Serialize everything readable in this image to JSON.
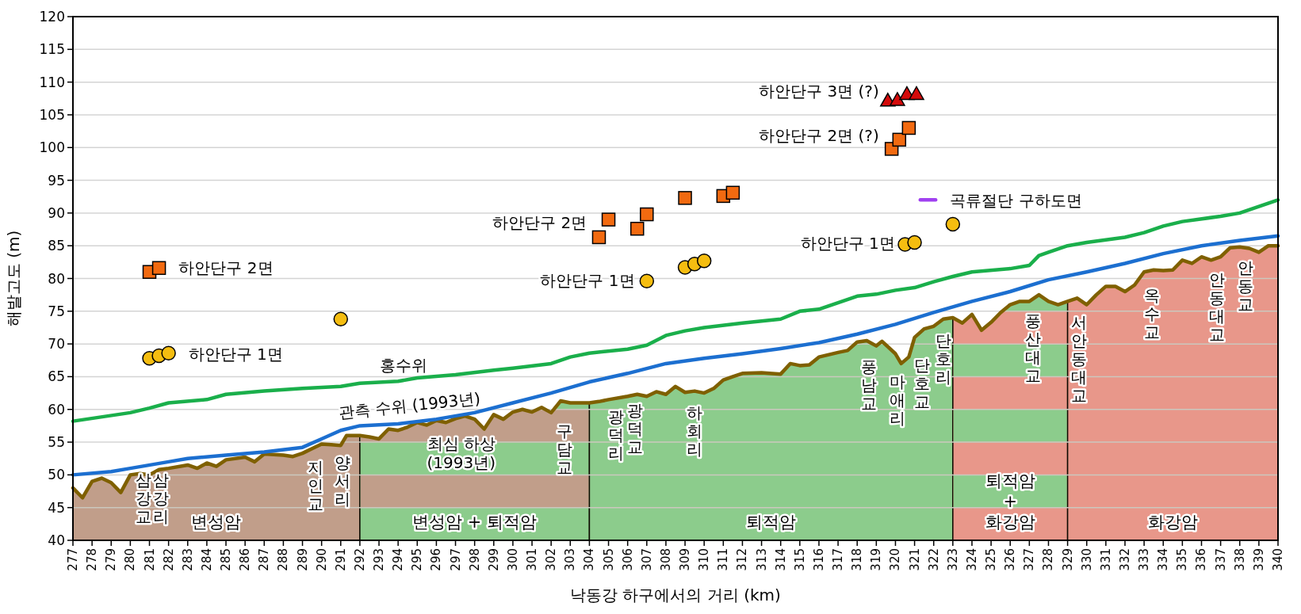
{
  "chart_data": {
    "type": "line",
    "xlabel": "낙동강 하구에서의 거리 (km)",
    "ylabel": "해발고도 (m)",
    "xlim": [
      277,
      340
    ],
    "ylim": [
      40,
      120
    ],
    "xticks": [
      277,
      278,
      279,
      280,
      281,
      282,
      283,
      284,
      285,
      286,
      287,
      288,
      289,
      290,
      291,
      292,
      293,
      294,
      295,
      296,
      297,
      298,
      299,
      300,
      301,
      302,
      303,
      304,
      305,
      306,
      307,
      308,
      309,
      310,
      311,
      312,
      313,
      314,
      315,
      316,
      317,
      318,
      319,
      320,
      321,
      322,
      323,
      324,
      325,
      326,
      327,
      328,
      329,
      330,
      331,
      332,
      333,
      334,
      335,
      336,
      337,
      338,
      339,
      340
    ],
    "yticks": [
      40,
      45,
      50,
      55,
      60,
      65,
      70,
      75,
      80,
      85,
      90,
      95,
      100,
      105,
      110,
      115,
      120
    ],
    "grid": "y",
    "bands": [
      {
        "axis": "x",
        "from": 277,
        "to": 292,
        "label": "변성암",
        "color": [
          "#c9a59a"
        ]
      },
      {
        "axis": "x",
        "from": 292,
        "to": 304,
        "label": "변성암 + 퇴적암",
        "color": [
          "#8ed99c",
          "#c9a59a"
        ]
      },
      {
        "axis": "x",
        "from": 304,
        "to": 323,
        "label": "퇴적암",
        "color": [
          "#8ed99c"
        ]
      },
      {
        "axis": "x",
        "from": 323,
        "to": 329,
        "label": "퇴적암\n+\n화강암",
        "color": [
          "#f49d9a",
          "#8ed99c"
        ]
      },
      {
        "axis": "x",
        "from": 329,
        "to": 340,
        "label": "화강암",
        "color": [
          "#f49d9a"
        ]
      }
    ],
    "series": [
      {
        "type": "area",
        "color": "#7f6000",
        "x": [
          277,
          277.5,
          278,
          278.5,
          279,
          279.5,
          280,
          280.5,
          281,
          281.5,
          282,
          283,
          283.5,
          284,
          284.5,
          285,
          286,
          286.5,
          287,
          288,
          288.5,
          289,
          289.5,
          290,
          290.5,
          291,
          291.3,
          292,
          292.5,
          293,
          293.5,
          294,
          294.5,
          295,
          295.5,
          296,
          296.5,
          297,
          297.5,
          298,
          298.5,
          299,
          299.5,
          300,
          300.5,
          301,
          301.5,
          302,
          302.5,
          303,
          304,
          304.5,
          305,
          306,
          306.5,
          307,
          307.5,
          308,
          308.5,
          309,
          309.5,
          310,
          310.5,
          311,
          311.5,
          312,
          313,
          314,
          314.5,
          315,
          315.5,
          316,
          317,
          317.5,
          318,
          318.5,
          319,
          319.3,
          320,
          320.3,
          320.7,
          321,
          321.5,
          322,
          322.5,
          323,
          323.5,
          324,
          324.5,
          325,
          325.5,
          326,
          326.5,
          327,
          327.5,
          328,
          328.5,
          329,
          329.5,
          330,
          330.5,
          331,
          331.5,
          332,
          332.5,
          333,
          333.5,
          334,
          334.5,
          335,
          335.5,
          336,
          336.5,
          337,
          337.5,
          338,
          338.5,
          339,
          339.5,
          340
        ],
        "values": [
          48,
          46.5,
          49,
          49.5,
          48.8,
          47.3,
          50,
          50.2,
          50,
          50.8,
          51,
          51.5,
          51,
          51.8,
          51.3,
          52.3,
          52.7,
          52,
          53.2,
          53,
          52.8,
          53.3,
          54,
          54.7,
          54.6,
          54.5,
          56,
          56,
          55.8,
          55.5,
          57,
          56.8,
          57.3,
          58,
          57.6,
          58.3,
          58,
          58.6,
          59,
          58.5,
          57,
          59.2,
          58.5,
          59.6,
          60,
          59.6,
          60.3,
          59.5,
          61.3,
          61,
          61,
          61.2,
          61.5,
          62,
          62.3,
          62,
          62.7,
          62.3,
          63.5,
          62.6,
          62.8,
          62.5,
          63.2,
          64.5,
          65,
          65.5,
          65.6,
          65.4,
          67,
          66.7,
          66.8,
          68,
          68.7,
          69,
          70.3,
          70.5,
          69.7,
          70.4,
          68.5,
          67,
          68,
          71,
          72.3,
          72.7,
          73.8,
          74,
          73.2,
          74.5,
          72.1,
          73.3,
          74.8,
          76,
          76.5,
          76.5,
          77.5,
          76.5,
          76,
          76.5,
          77,
          76,
          77.5,
          78.8,
          78.8,
          78,
          79,
          81,
          81.3,
          81.2,
          81.3,
          82.8,
          82.3,
          83.3,
          82.8,
          83.3,
          84.7,
          84.8,
          84.6,
          84,
          85,
          85
        ]
      },
      {
        "color": "#1aaf4b",
        "x": [
          277,
          280,
          281,
          282,
          284,
          285,
          287,
          289,
          291,
          292,
          294,
          295,
          297,
          299,
          300,
          302,
          303,
          304,
          306,
          307,
          308,
          309,
          310,
          312,
          314,
          315,
          316,
          317,
          318,
          319,
          320,
          321,
          322,
          323,
          324,
          326,
          327,
          327.5,
          328,
          329,
          330,
          332,
          333,
          334,
          335,
          337,
          338,
          339,
          340
        ],
        "values": [
          58.2,
          59.5,
          60.2,
          61,
          61.5,
          62.3,
          62.8,
          63.2,
          63.5,
          64,
          64.3,
          64.8,
          65.3,
          66,
          66.3,
          67,
          68,
          68.6,
          69.2,
          69.8,
          71.3,
          72,
          72.5,
          73.2,
          73.8,
          75,
          75.3,
          76.3,
          77.3,
          77.6,
          78.2,
          78.6,
          79.5,
          80.3,
          81,
          81.5,
          82,
          83.5,
          84,
          85,
          85.5,
          86.3,
          87,
          88,
          88.7,
          89.5,
          90,
          91,
          92
        ]
      },
      {
        "color": "#1c6fd0",
        "x": [
          277,
          279,
          280,
          282,
          283,
          285,
          287,
          289,
          290,
          291,
          292,
          294,
          296,
          298,
          300,
          302,
          304,
          306,
          308,
          310,
          312,
          314,
          316,
          318,
          320,
          322,
          324,
          326,
          328,
          330,
          332,
          334,
          336,
          338,
          340
        ],
        "values": [
          50,
          50.5,
          51,
          52,
          52.5,
          53,
          53.5,
          54.2,
          55.5,
          56.8,
          57.5,
          57.8,
          58.5,
          59.5,
          61,
          62.5,
          64.2,
          65.5,
          67,
          67.8,
          68.5,
          69.3,
          70.2,
          71.5,
          73,
          74.8,
          76.5,
          78,
          79.8,
          81,
          82.3,
          83.8,
          85,
          85.8,
          86.5
        ]
      },
      {
        "type": "scatter",
        "marker": "circle",
        "color": "#f5bd10",
        "x": [
          281,
          281.5,
          282,
          291,
          307,
          309,
          309.5,
          310,
          320.5,
          321,
          323
        ],
        "values": [
          67.8,
          68.2,
          68.6,
          73.8,
          79.6,
          81.7,
          82.2,
          82.7,
          85.2,
          85.5,
          88.3
        ]
      },
      {
        "type": "scatter",
        "marker": "square",
        "color": "#f26a10",
        "x": [
          281,
          281.5,
          304.5,
          305,
          306.5,
          307,
          309,
          311,
          311.5,
          319.8,
          320.2,
          320.7
        ],
        "values": [
          81,
          81.6,
          86.3,
          89,
          87.6,
          89.8,
          92.3,
          92.6,
          93.1,
          99.8,
          101.2,
          103
        ]
      },
      {
        "type": "scatter",
        "marker": "triangle",
        "color": "#d40b0b",
        "x": [
          319.6,
          320.1,
          320.6,
          321.1
        ],
        "values": [
          107.2,
          107.3,
          108.2,
          108.2
        ]
      },
      {
        "color": "#a040f0",
        "x": [
          321.3,
          322.1
        ],
        "values": [
          92,
          92
        ]
      }
    ],
    "annotations": [
      "홍수위",
      "관측 수위 (1993년)",
      "최심 하상\n(1993년)",
      "하안단구 2면",
      "하안단구 1면",
      "하안단구 2면",
      "하안단구 1면",
      "하안단구 3면 (?)",
      "하안단구 2면 (?)",
      "하안단구 1면",
      "곡류절단 구하도면",
      "삼강교",
      "삼강리",
      "지인교",
      "양서리",
      "구담교",
      "광덕리",
      "광덕교",
      "하회리",
      "풍남교",
      "마애리",
      "단호교",
      "단호리",
      "풍산대교",
      "서안동대교",
      "옥수교",
      "안동대교",
      "안동교"
    ]
  }
}
